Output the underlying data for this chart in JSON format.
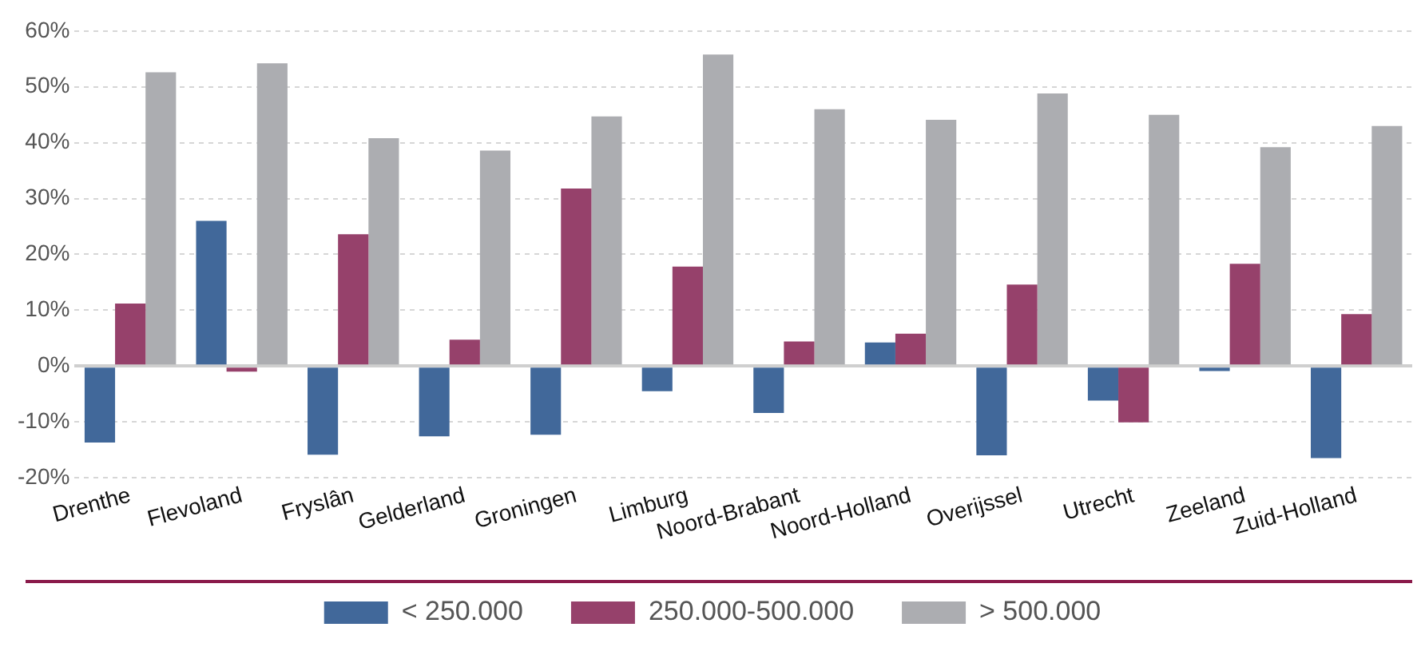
{
  "chart_data": {
    "type": "bar",
    "categories": [
      "Drenthe",
      "Flevoland",
      "Fryslân",
      "Gelderland",
      "Groningen",
      "Limburg",
      "Noord-Brabant",
      "Noord-Holland",
      "Overijssel",
      "Utrecht",
      "Zeeland",
      "Zuid-Holland"
    ],
    "series": [
      {
        "name": "< 250.000",
        "color": "#41689a",
        "values": [
          -13.7,
          26,
          -15.9,
          -12.6,
          -12.3,
          -4.5,
          -8.4,
          4.2,
          -16,
          -6.2,
          -0.9,
          -16.5
        ]
      },
      {
        "name": "250.000-500.000",
        "color": "#96416b",
        "values": [
          11.2,
          -1,
          23.6,
          4.7,
          31.8,
          17.8,
          4.4,
          5.8,
          14.6,
          -10.1,
          18.3,
          9.3
        ]
      },
      {
        "name": "> 500.000",
        "color": "#acadb1",
        "values": [
          52.6,
          54.2,
          40.8,
          38.6,
          44.7,
          55.8,
          46,
          44.1,
          48.8,
          45,
          39.2,
          43
        ]
      }
    ],
    "ylim": [
      -20,
      60
    ],
    "yticks": [
      {
        "value": -20,
        "label": "-20%"
      },
      {
        "value": -10,
        "label": "-10%"
      },
      {
        "value": 0,
        "label": "0%"
      },
      {
        "value": 10,
        "label": "10%"
      },
      {
        "value": 20,
        "label": "20%"
      },
      {
        "value": 30,
        "label": "30%"
      },
      {
        "value": 40,
        "label": "40%"
      },
      {
        "value": 50,
        "label": "50%"
      },
      {
        "value": 60,
        "label": "60%"
      }
    ],
    "grid": "y",
    "legend": "bottom"
  }
}
